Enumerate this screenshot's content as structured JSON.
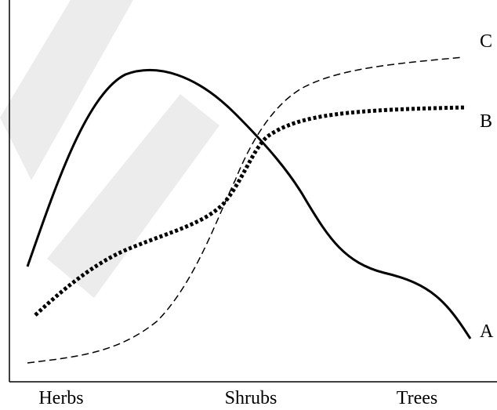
{
  "x_axis": [
    "Herbs",
    "Shrubs",
    "Trees"
  ],
  "curves": [
    "A",
    "B",
    "C"
  ]
}
